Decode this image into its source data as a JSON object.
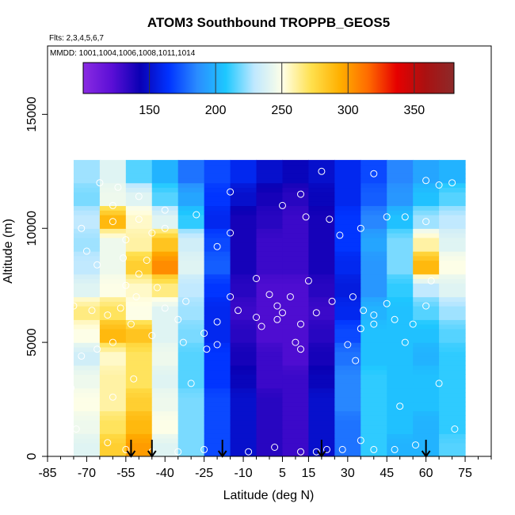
{
  "chart_data": {
    "type": "heatmap",
    "title": "ATOM3 Southbound TROPPB_GEOS5",
    "flights_label": "Flts: 2,3,4,5,6,7",
    "dates_label": "MMDD: 1001,1004,1006,1008,1011,1014",
    "xlabel": "Latitude (deg N)",
    "ylabel": "Altitude (m)",
    "xlim": [
      -85,
      85
    ],
    "ylim": [
      0,
      18000
    ],
    "xticks": [
      -85,
      -70,
      -55,
      -40,
      -25,
      -10,
      5,
      15,
      30,
      45,
      60,
      75
    ],
    "xtick_labels": [
      "-85",
      "-70",
      "-55",
      "-40",
      "-25",
      "-10",
      "5",
      "15",
      "30",
      "45",
      "60",
      "75"
    ],
    "yticks": [
      0,
      5000,
      10000,
      15000
    ],
    "ytick_labels": [
      "0",
      "5000",
      "10000",
      "15000"
    ],
    "colorbar": {
      "range": [
        100,
        380
      ],
      "ticks": [
        150,
        200,
        250,
        300,
        350
      ],
      "tick_labels": [
        "150",
        "200",
        "250",
        "300",
        "350"
      ],
      "colors": [
        "#8a2be2",
        "#5b0fd6",
        "#0a00b4",
        "#0033ff",
        "#2a8cff",
        "#1ec8ff",
        "#bfe8ff",
        "#ffffe6",
        "#ffe04d",
        "#ffb000",
        "#ff6a00",
        "#e60000",
        "#aa1111",
        "#8c2a2a"
      ]
    },
    "x_edges": [
      -75,
      -65,
      -55,
      -45,
      -35,
      -25,
      -15,
      -5,
      5,
      15,
      25,
      35,
      45,
      55,
      65,
      75
    ],
    "y_edges": [
      0,
      1000,
      2000,
      3000,
      4000,
      5000,
      6000,
      7000,
      8000,
      9000,
      10000,
      11000,
      12000,
      13000
    ],
    "z": [
      [
        240,
        280,
        300,
        240,
        220,
        170,
        150,
        135,
        130,
        150,
        180,
        210,
        200,
        200,
        215
      ],
      [
        245,
        270,
        290,
        250,
        220,
        170,
        150,
        135,
        130,
        150,
        180,
        210,
        205,
        200,
        210
      ],
      [
        250,
        260,
        280,
        245,
        220,
        170,
        150,
        135,
        130,
        150,
        185,
        210,
        205,
        205,
        210
      ],
      [
        245,
        260,
        270,
        240,
        215,
        165,
        145,
        130,
        130,
        145,
        185,
        210,
        205,
        205,
        210
      ],
      [
        235,
        255,
        270,
        245,
        215,
        165,
        140,
        130,
        125,
        140,
        180,
        205,
        205,
        200,
        210
      ],
      [
        250,
        290,
        285,
        240,
        220,
        160,
        135,
        125,
        125,
        135,
        170,
        205,
        205,
        205,
        215
      ],
      [
        265,
        270,
        250,
        240,
        225,
        160,
        130,
        125,
        125,
        130,
        160,
        200,
        205,
        215,
        225
      ],
      [
        240,
        250,
        255,
        265,
        230,
        165,
        135,
        125,
        125,
        135,
        155,
        190,
        210,
        230,
        240
      ],
      [
        230,
        245,
        280,
        305,
        240,
        175,
        140,
        130,
        130,
        140,
        160,
        190,
        220,
        290,
        250
      ],
      [
        225,
        245,
        260,
        285,
        235,
        170,
        140,
        130,
        130,
        140,
        165,
        195,
        220,
        260,
        240
      ],
      [
        230,
        290,
        255,
        240,
        210,
        160,
        140,
        135,
        130,
        140,
        165,
        185,
        205,
        225,
        230
      ],
      [
        220,
        245,
        240,
        215,
        195,
        165,
        150,
        140,
        135,
        145,
        160,
        175,
        190,
        205,
        215
      ],
      [
        225,
        240,
        215,
        200,
        180,
        170,
        160,
        150,
        145,
        150,
        160,
        170,
        185,
        195,
        200
      ]
    ],
    "arrows_lat": [
      -53,
      -45,
      -18,
      20,
      60
    ],
    "points": [
      [
        -72,
        10000
      ],
      [
        -60,
        10300
      ],
      [
        -50,
        10400
      ],
      [
        -40,
        10000
      ],
      [
        -45,
        9800
      ],
      [
        -55,
        9500
      ],
      [
        -47,
        8600
      ],
      [
        -50,
        8000
      ],
      [
        -55,
        7500
      ],
      [
        -43,
        7400
      ],
      [
        -51,
        7000
      ],
      [
        -57,
        6500
      ],
      [
        -62,
        6200
      ],
      [
        -40,
        6500
      ],
      [
        -35,
        6000
      ],
      [
        -53,
        5800
      ],
      [
        -45,
        5300
      ],
      [
        -60,
        5000
      ],
      [
        -33,
        5000
      ],
      [
        -24,
        4700
      ],
      [
        -20,
        4900
      ],
      [
        -25,
        5400
      ],
      [
        -12,
        6400
      ],
      [
        -20,
        9200
      ],
      [
        -15,
        9800
      ],
      [
        -5,
        7800
      ],
      [
        0,
        7100
      ],
      [
        -15,
        7000
      ],
      [
        5,
        6300
      ],
      [
        3,
        6000
      ],
      [
        8,
        7000
      ],
      [
        12,
        5800
      ],
      [
        10,
        5000
      ],
      [
        12,
        4700
      ],
      [
        15,
        7700
      ],
      [
        3,
        6600
      ],
      [
        -3,
        5700
      ],
      [
        -5,
        6100
      ],
      [
        5,
        11000
      ],
      [
        14,
        10500
      ],
      [
        23,
        10400
      ],
      [
        27,
        9700
      ],
      [
        32,
        7000
      ],
      [
        36,
        6400
      ],
      [
        40,
        6200
      ],
      [
        45,
        6700
      ],
      [
        48,
        6000
      ],
      [
        55,
        5800
      ],
      [
        60,
        6600
      ],
      [
        62,
        7700
      ],
      [
        60,
        10300
      ],
      [
        52,
        10500
      ],
      [
        45,
        10500
      ],
      [
        35,
        10000
      ],
      [
        70,
        12000
      ],
      [
        65,
        11900
      ],
      [
        40,
        12400
      ],
      [
        -65,
        12000
      ],
      [
        -58,
        11800
      ],
      [
        -50,
        11400
      ],
      [
        -60,
        11000
      ],
      [
        -70,
        9000
      ],
      [
        -75,
        6600
      ],
      [
        -66,
        4700
      ],
      [
        -72,
        4400
      ],
      [
        -68,
        6400
      ],
      [
        -62,
        600
      ],
      [
        -55,
        300
      ],
      [
        -45,
        200
      ],
      [
        -35,
        200
      ],
      [
        -25,
        300
      ],
      [
        -8,
        200
      ],
      [
        2,
        400
      ],
      [
        12,
        200
      ],
      [
        18,
        200
      ],
      [
        22,
        300
      ],
      [
        28,
        300
      ],
      [
        35,
        700
      ],
      [
        40,
        300
      ],
      [
        48,
        300
      ],
      [
        56,
        500
      ],
      [
        30,
        4900
      ],
      [
        35,
        5600
      ],
      [
        40,
        5800
      ],
      [
        52,
        5000
      ],
      [
        -30,
        3200
      ],
      [
        -60,
        2600
      ],
      [
        -52,
        3400
      ],
      [
        -66,
        8400
      ],
      [
        -56,
        8700
      ],
      [
        -40,
        10800
      ],
      [
        -28,
        10600
      ],
      [
        -15,
        11600
      ],
      [
        20,
        12500
      ],
      [
        12,
        11500
      ],
      [
        -32,
        6800
      ],
      [
        -20,
        5900
      ],
      [
        18,
        6300
      ],
      [
        24,
        6800
      ],
      [
        33,
        4200
      ],
      [
        60,
        12100
      ],
      [
        71,
        1200
      ],
      [
        -74,
        1200
      ],
      [
        -76,
        3000
      ],
      [
        65,
        3200
      ],
      [
        50,
        2200
      ]
    ]
  }
}
